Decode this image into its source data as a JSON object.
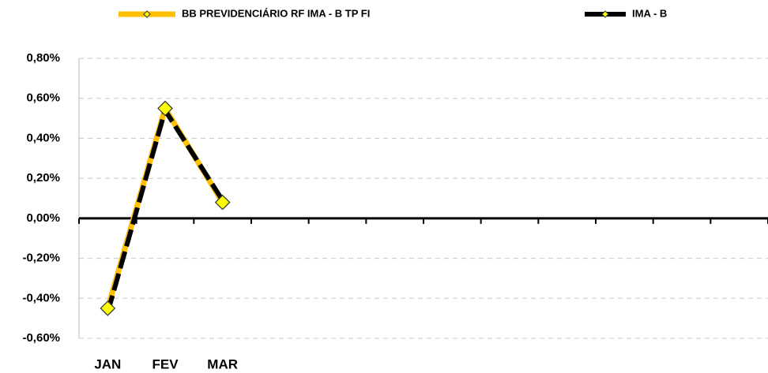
{
  "chart_data": {
    "type": "line",
    "categories": [
      "JAN",
      "FEV",
      "MAR",
      null,
      null,
      null,
      null,
      null,
      null,
      null,
      null,
      null
    ],
    "series": [
      {
        "name": "BB PREVIDENCIÁRIO RF IMA - B TP FI",
        "color": "#FFC000",
        "values": [
          -0.45,
          0.55,
          0.08,
          null,
          null,
          null,
          null,
          null,
          null,
          null,
          null,
          null
        ]
      },
      {
        "name": "IMA - B",
        "color": "#000000",
        "values": [
          -0.47,
          0.54,
          0.09,
          null,
          null,
          null,
          null,
          null,
          null,
          null,
          null,
          null
        ]
      }
    ],
    "ylim": [
      -0.6,
      0.8
    ],
    "yticks": [
      {
        "value": -0.6,
        "label": "-0,60%"
      },
      {
        "value": -0.4,
        "label": "-0,40%"
      },
      {
        "value": -0.2,
        "label": "-0,20%"
      },
      {
        "value": 0,
        "label": "0,00%"
      },
      {
        "value": 0.2,
        "label": "0,20%"
      },
      {
        "value": 0.4,
        "label": "0,40%"
      },
      {
        "value": 0.6,
        "label": "0,60%"
      },
      {
        "value": 0.8,
        "label": "0,80%"
      }
    ],
    "grid": true,
    "legend": "top"
  }
}
